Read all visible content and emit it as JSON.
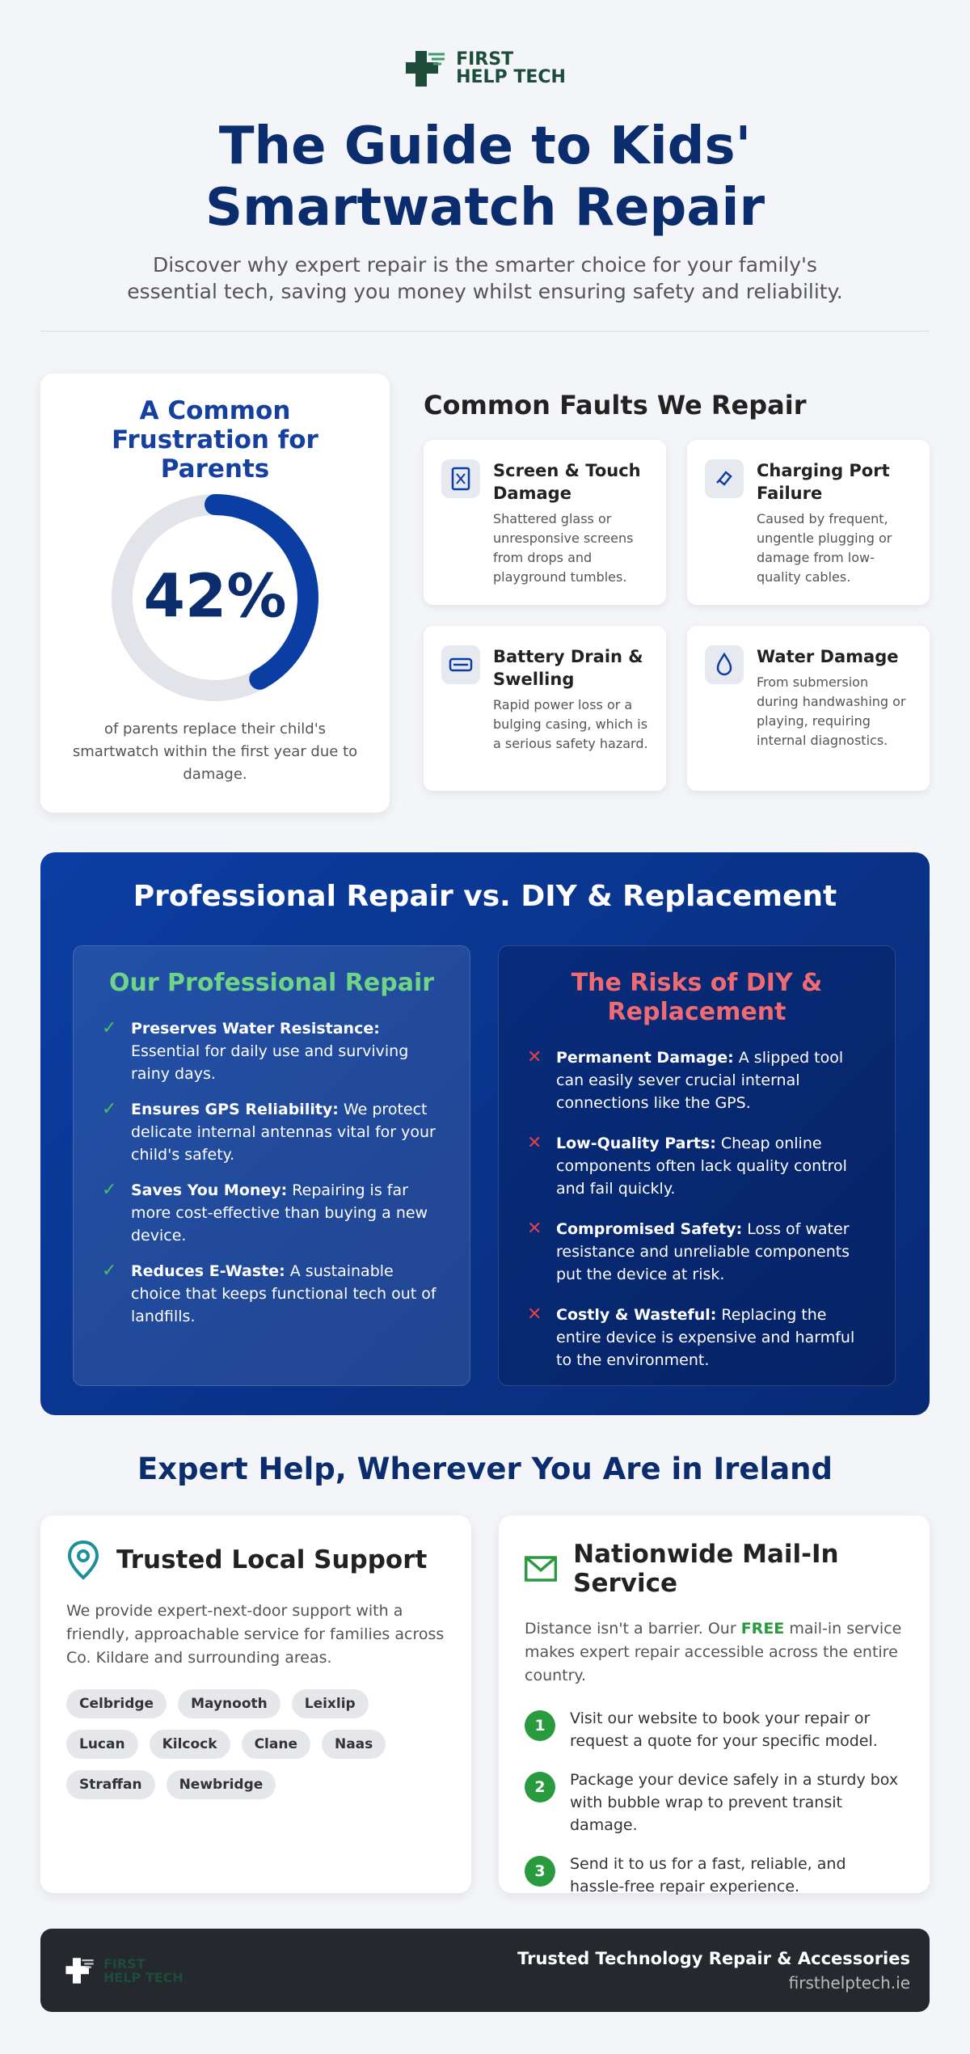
{
  "brand": {
    "line1": "FIRST",
    "line2": "HELP TECH"
  },
  "header": {
    "title": "The Guide to Kids' Smartwatch Repair",
    "subtitle": "Discover why expert repair is the smarter choice for your family's essential tech, saving you money whilst ensuring safety and reliability."
  },
  "stat": {
    "heading": "A Common Frustration for Parents",
    "value": 42,
    "label": "42%",
    "caption": "of parents replace their child's smartwatch within the first year due to damage."
  },
  "faults": {
    "heading": "Common Faults We Repair",
    "items": [
      {
        "title": "Screen & Touch Damage",
        "text": "Shattered glass or unresponsive screens from drops and playground tumbles."
      },
      {
        "title": "Charging Port Failure",
        "text": "Caused by frequent, ungentle plugging or damage from low-quality cables."
      },
      {
        "title": "Battery Drain & Swelling",
        "text": "Rapid power loss or a bulging casing, which is a serious safety hazard."
      },
      {
        "title": "Water Damage",
        "text": "From submersion during handwashing or playing, requiring internal diagnostics."
      }
    ]
  },
  "comparison": {
    "heading": "Professional Repair vs. DIY & Replacement",
    "pro": {
      "heading": "Our Professional Repair",
      "items": [
        {
          "title": "Preserves Water Resistance:",
          "text": " Essential for daily use and surviving rainy days."
        },
        {
          "title": "Ensures GPS Reliability:",
          "text": " We protect delicate internal antennas vital for your child's safety."
        },
        {
          "title": "Saves You Money:",
          "text": " Repairing is far more cost-effective than buying a new device."
        },
        {
          "title": "Reduces E-Waste:",
          "text": " A sustainable choice that keeps functional tech out of landfills."
        }
      ]
    },
    "diy": {
      "heading": "The Risks of DIY & Replacement",
      "items": [
        {
          "title": "Permanent Damage:",
          "text": " A slipped tool can easily sever crucial internal connections like the GPS."
        },
        {
          "title": "Low-Quality Parts:",
          "text": " Cheap online components often lack quality control and fail quickly."
        },
        {
          "title": "Compromised Safety:",
          "text": " Loss of water resistance and unreliable components put the device at risk."
        },
        {
          "title": "Costly & Wasteful:",
          "text": " Replacing the entire device is expensive and harmful to the environment."
        }
      ]
    }
  },
  "ireland": {
    "heading": "Expert Help, Wherever You Are in Ireland",
    "local": {
      "heading": "Trusted Local Support",
      "text": "We provide expert-next-door support with a friendly, approachable service for families across Co. Kildare and surrounding areas.",
      "towns": [
        "Celbridge",
        "Maynooth",
        "Leixlip",
        "Lucan",
        "Kilcock",
        "Clane",
        "Naas",
        "Straffan",
        "Newbridge"
      ]
    },
    "mail": {
      "heading": "Nationwide Mail-In Service",
      "text_before": "Distance isn't a barrier. Our ",
      "highlight": "FREE",
      "text_after": " mail-in service makes expert repair accessible across the entire country.",
      "steps": [
        {
          "number": "1",
          "text": "Visit our website to book your repair or request a quote for your specific model."
        },
        {
          "number": "2",
          "text": "Package your device safely in a sturdy box with bubble wrap to prevent transit damage."
        },
        {
          "number": "3",
          "text": "Send it to us for a fast, reliable, and hassle-free repair experience."
        }
      ]
    }
  },
  "footer": {
    "tagline": "Trusted Technology Repair & Accessories",
    "url": "firsthelptech.ie"
  }
}
